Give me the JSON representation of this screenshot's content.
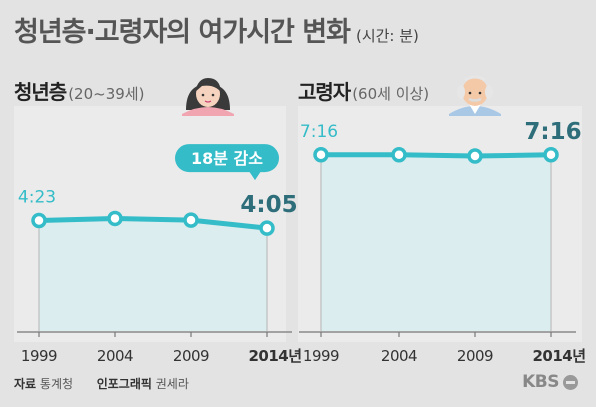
{
  "title": "청년층·고령자의 여가시간 변화",
  "unit": "(시간: 분)",
  "source_label": "자료",
  "source_value": "통계청",
  "graphic_label": "인포그래픽",
  "graphic_value": "권세라",
  "logo_text": "KBS",
  "colors": {
    "line": "#34bcc8",
    "fill": "#cdeef0",
    "dark": "#2e6e7a",
    "grid": "#b5b5b5"
  },
  "chart_data": [
    {
      "type": "area",
      "panel_title": "청년층",
      "panel_subtitle": "(20~39세)",
      "categories": [
        "1999",
        "2004",
        "2009",
        "2014년"
      ],
      "values": [
        263,
        268,
        264,
        245
      ],
      "value_labels": [
        "4:23",
        "",
        "",
        "4:05"
      ],
      "annotation": "18분 감소",
      "ylim": [
        0,
        300
      ],
      "icon": "young-woman-icon"
    },
    {
      "type": "area",
      "panel_title": "고령자",
      "panel_subtitle": "(60세 이상)",
      "categories": [
        "1999",
        "2004",
        "2009",
        "2014년"
      ],
      "values": [
        436,
        436,
        433,
        436
      ],
      "value_labels": [
        "7:16",
        "",
        "",
        "7:16"
      ],
      "ylim": [
        0,
        480
      ],
      "icon": "elderly-man-icon"
    }
  ]
}
